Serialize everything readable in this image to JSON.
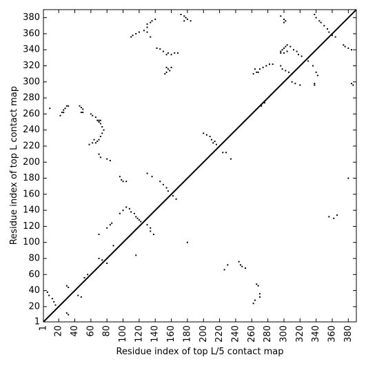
{
  "chart_data": {
    "type": "scatter",
    "xlabel": "Residue index of top L/5 contact map",
    "ylabel": "Residue index of top L contact map",
    "xlim": [
      1,
      390
    ],
    "ylim": [
      1,
      390
    ],
    "xticks": [
      1,
      20,
      40,
      60,
      80,
      100,
      120,
      140,
      160,
      180,
      200,
      220,
      240,
      260,
      280,
      300,
      320,
      340,
      360,
      380
    ],
    "yticks": [
      1,
      20,
      40,
      60,
      80,
      100,
      120,
      140,
      160,
      180,
      200,
      220,
      240,
      260,
      280,
      300,
      320,
      340,
      360,
      380
    ],
    "diagonal": true,
    "color": "#000000",
    "x": [
      9,
      22,
      24,
      26,
      28,
      30,
      32,
      26,
      46,
      48,
      50,
      48,
      50,
      60,
      62,
      66,
      68,
      70,
      72,
      74,
      76,
      74,
      72,
      70,
      68,
      66,
      64,
      62,
      58,
      70,
      72,
      70,
      72,
      80,
      84,
      96,
      98,
      100,
      104,
      110,
      112,
      116,
      120,
      126,
      130,
      130,
      134,
      136,
      140,
      130,
      134,
      142,
      146,
      150,
      154,
      156,
      160,
      164,
      168,
      172,
      176,
      178,
      180,
      184,
      176,
      154,
      156,
      158,
      160,
      152,
      154,
      130,
      136,
      146,
      150,
      154,
      156,
      162,
      166,
      200,
      204,
      208,
      210,
      214,
      212,
      216,
      224,
      228,
      234,
      262,
      266,
      270,
      274,
      278,
      282,
      286,
      264,
      268,
      276,
      272,
      296,
      300,
      302,
      300,
      296,
      298,
      300,
      302,
      304,
      308,
      312,
      316,
      318,
      322,
      296,
      300,
      304,
      296,
      298,
      302,
      306,
      310,
      310,
      314,
      320,
      330,
      336,
      338,
      340,
      344,
      346,
      350,
      354,
      356,
      360,
      364,
      338,
      338,
      342,
      340,
      374,
      376,
      380,
      384,
      384,
      386,
      6,
      8,
      12,
      14,
      16,
      30,
      32,
      44,
      48,
      52,
      56,
      30,
      32,
      70,
      70,
      74,
      80,
      80,
      84,
      86,
      88,
      96,
      100,
      104,
      108,
      110,
      114,
      116,
      118,
      120,
      122,
      116,
      130,
      134,
      134,
      138,
      180,
      226,
      230,
      244,
      246,
      248,
      252,
      262,
      264,
      270,
      270,
      266,
      268,
      356,
      362,
      366,
      380
    ],
    "y": [
      267,
      258,
      262,
      265,
      267,
      270,
      270,
      262,
      270,
      268,
      266,
      262,
      262,
      260,
      258,
      256,
      252,
      250,
      248,
      244,
      240,
      236,
      232,
      228,
      226,
      224,
      228,
      224,
      222,
      252,
      252,
      210,
      206,
      204,
      202,
      182,
      178,
      176,
      176,
      356,
      358,
      360,
      362,
      364,
      368,
      372,
      374,
      376,
      378,
      362,
      356,
      342,
      341,
      338,
      334,
      336,
      334,
      336,
      336,
      384,
      382,
      380,
      378,
      376,
      376,
      318,
      316,
      314,
      318,
      310,
      312,
      186,
      182,
      176,
      172,
      168,
      164,
      158,
      154,
      236,
      234,
      232,
      228,
      226,
      224,
      222,
      212,
      212,
      204,
      310,
      312,
      316,
      318,
      320,
      322,
      322,
      316,
      312,
      274,
      270,
      382,
      378,
      376,
      374,
      338,
      340,
      342,
      344,
      346,
      344,
      340,
      338,
      334,
      332,
      336,
      336,
      338,
      320,
      316,
      314,
      312,
      310,
      300,
      298,
      296,
      326,
      320,
      384,
      380,
      376,
      374,
      370,
      366,
      362,
      358,
      356,
      298,
      296,
      308,
      312,
      346,
      344,
      342,
      340,
      298,
      296,
      38,
      34,
      30,
      26,
      22,
      46,
      44,
      34,
      32,
      56,
      60,
      12,
      10,
      110,
      80,
      78,
      74,
      118,
      122,
      124,
      96,
      136,
      140,
      144,
      142,
      138,
      136,
      132,
      130,
      128,
      126,
      84,
      122,
      118,
      114,
      110,
      100,
      66,
      72,
      76,
      72,
      70,
      68,
      24,
      28,
      32,
      36,
      48,
      46,
      132,
      130,
      134,
      180
    ]
  }
}
